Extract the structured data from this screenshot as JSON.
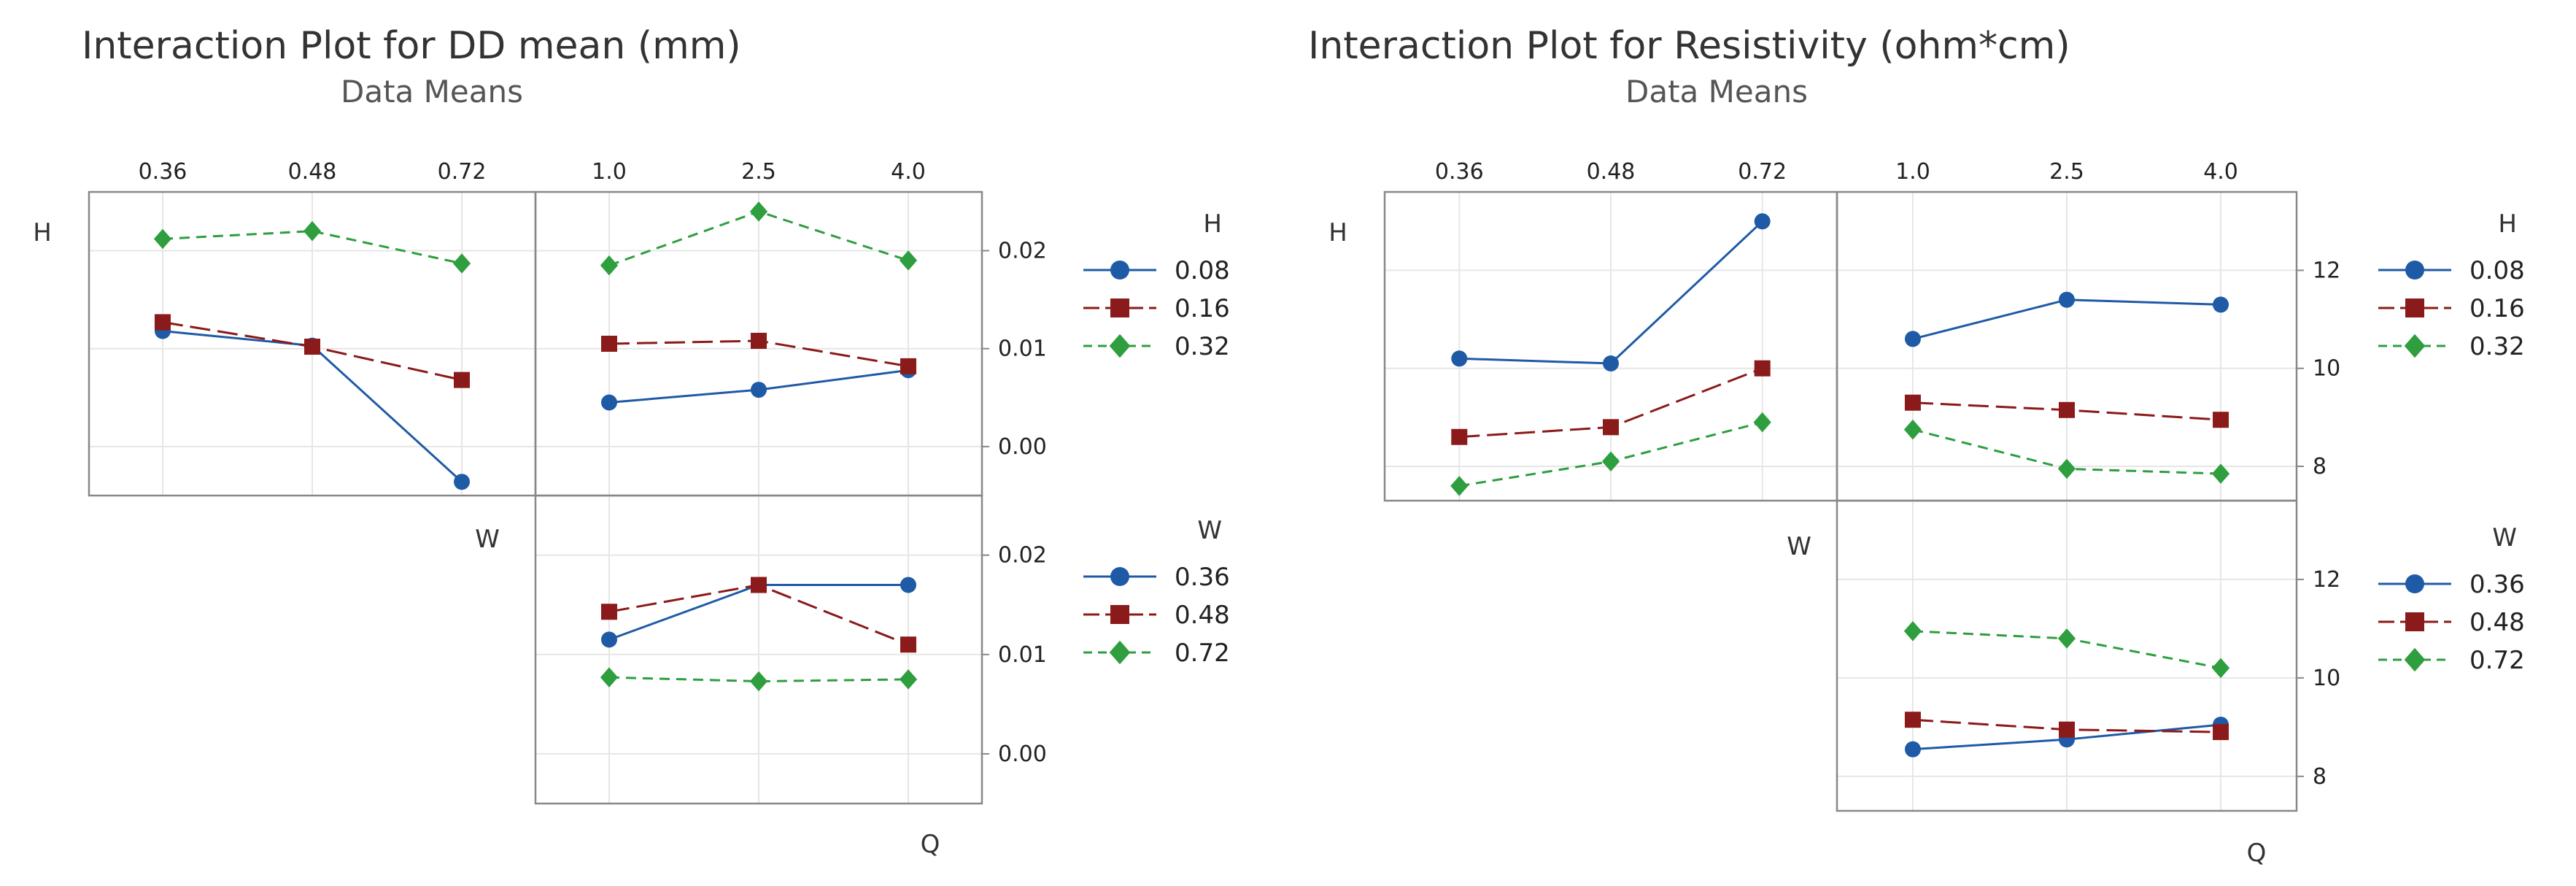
{
  "colors": {
    "series1": "#1F5AA6",
    "series2": "#8B1A1A",
    "series3": "#2E9E3E",
    "grid": "#E6E6E6",
    "frame": "#888888"
  },
  "chart_data": [
    {
      "type": "line",
      "title": "Interaction Plot for DD mean (mm)",
      "subtitle": "Data Means",
      "factors": [
        "H",
        "W",
        "Q"
      ],
      "w_levels": [
        "0.36",
        "0.48",
        "0.72"
      ],
      "q_levels": [
        "1.0",
        "2.5",
        "4.0"
      ],
      "yticks": [
        "0.00",
        "0.01",
        "0.02"
      ],
      "ylim": [
        -0.005,
        0.026
      ],
      "legend_H": {
        "title": "H",
        "entries": [
          "0.08",
          "0.16",
          "0.32"
        ]
      },
      "legend_W": {
        "title": "W",
        "entries": [
          "0.36",
          "0.48",
          "0.72"
        ]
      },
      "panel_H_by_W": [
        {
          "name": "0.08",
          "values": [
            0.0118,
            0.0103,
            -0.0036
          ]
        },
        {
          "name": "0.16",
          "values": [
            0.0127,
            0.0102,
            0.0068
          ]
        },
        {
          "name": "0.32",
          "values": [
            0.0212,
            0.022,
            0.0187
          ]
        }
      ],
      "panel_H_by_Q": [
        {
          "name": "0.08",
          "values": [
            0.0045,
            0.0058,
            0.0078
          ]
        },
        {
          "name": "0.16",
          "values": [
            0.0105,
            0.0108,
            0.0082
          ]
        },
        {
          "name": "0.32",
          "values": [
            0.0185,
            0.024,
            0.019
          ]
        }
      ],
      "panel_W_by_Q": [
        {
          "name": "0.36",
          "values": [
            0.0115,
            0.017,
            0.017
          ]
        },
        {
          "name": "0.48",
          "values": [
            0.0143,
            0.017,
            0.011
          ]
        },
        {
          "name": "0.72",
          "values": [
            0.0077,
            0.0073,
            0.0075
          ]
        }
      ]
    },
    {
      "type": "line",
      "title": "Interaction Plot for Resistivity (ohm*cm)",
      "subtitle": "Data Means",
      "factors": [
        "H",
        "W",
        "Q"
      ],
      "w_levels": [
        "0.36",
        "0.48",
        "0.72"
      ],
      "q_levels": [
        "1.0",
        "2.5",
        "4.0"
      ],
      "yticks": [
        "8",
        "10",
        "12"
      ],
      "ylim": [
        7.3,
        13.6
      ],
      "legend_H": {
        "title": "H",
        "entries": [
          "0.08",
          "0.16",
          "0.32"
        ]
      },
      "legend_W": {
        "title": "W",
        "entries": [
          "0.36",
          "0.48",
          "0.72"
        ]
      },
      "panel_H_by_W": [
        {
          "name": "0.08",
          "values": [
            10.2,
            10.1,
            13.0
          ]
        },
        {
          "name": "0.16",
          "values": [
            8.6,
            8.8,
            10.0
          ]
        },
        {
          "name": "0.32",
          "values": [
            7.6,
            8.1,
            8.9
          ]
        }
      ],
      "panel_H_by_Q": [
        {
          "name": "0.08",
          "values": [
            10.6,
            11.4,
            11.3
          ]
        },
        {
          "name": "0.16",
          "values": [
            9.3,
            9.15,
            8.95
          ]
        },
        {
          "name": "0.32",
          "values": [
            8.75,
            7.95,
            7.85
          ]
        }
      ],
      "panel_W_by_Q": [
        {
          "name": "0.36",
          "values": [
            8.55,
            8.75,
            9.05
          ]
        },
        {
          "name": "0.48",
          "values": [
            9.15,
            8.95,
            8.9
          ]
        },
        {
          "name": "0.72",
          "values": [
            10.95,
            10.8,
            10.2
          ]
        }
      ]
    }
  ]
}
